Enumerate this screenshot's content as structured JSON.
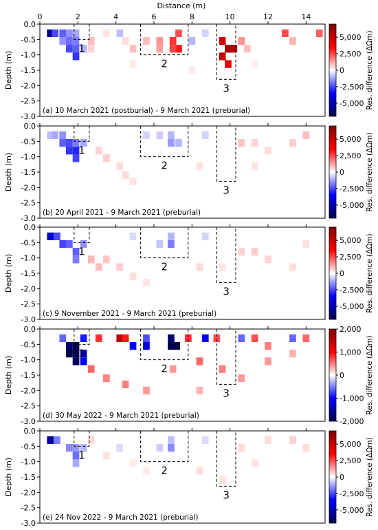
{
  "figure": {
    "xlabel": "Distance (m)",
    "ylabel": "Depth (m)",
    "colorbar_label": "Res. difference (ΔΩm)",
    "x_ticks": [
      "0",
      "2",
      "4",
      "6",
      "8",
      "10",
      "12",
      "14"
    ],
    "y_ticks": [
      "0.0",
      "-0.5",
      "-1.0",
      "-1.5",
      "-2.0",
      "-2.5",
      "-3.0"
    ],
    "box_labels": [
      "1",
      "2",
      "3"
    ]
  },
  "chart_data": [
    {
      "type": "heatmap",
      "id": "a",
      "caption": "(a) 10 March 2021 (postburial) - 9 March 2021 (preburial)",
      "xlim": [
        0,
        15
      ],
      "ylim": [
        -3.0,
        0.0
      ],
      "colorbar": {
        "min": -7000,
        "max": 7000,
        "ticks": [
          5000,
          2500,
          0,
          -2500,
          -5000
        ],
        "tick_labels": [
          "5,000",
          "2,500",
          "0",
          "-2,500",
          "-5,000"
        ]
      },
      "cells": [
        [
          0.55,
          -0.3,
          -5500
        ],
        [
          0.8,
          -0.3,
          -2500
        ],
        [
          1.2,
          -0.3,
          -2200
        ],
        [
          1.55,
          -0.3,
          -1500
        ],
        [
          1.9,
          -0.3,
          -1200
        ],
        [
          1.2,
          -0.55,
          -1500
        ],
        [
          1.55,
          -0.55,
          -2000
        ],
        [
          1.9,
          -0.55,
          -1800
        ],
        [
          1.55,
          -0.8,
          -2500
        ],
        [
          1.9,
          -0.8,
          -2200
        ],
        [
          1.9,
          -1.05,
          -2800
        ],
        [
          2.3,
          -0.8,
          -1000
        ],
        [
          2.7,
          -0.55,
          900
        ],
        [
          2.7,
          -0.8,
          600
        ],
        [
          3.5,
          -0.3,
          400
        ],
        [
          4.2,
          -0.3,
          -900
        ],
        [
          4.5,
          -0.55,
          500
        ],
        [
          4.9,
          -0.8,
          900
        ],
        [
          5.6,
          -0.55,
          900
        ],
        [
          6.3,
          -0.55,
          1500
        ],
        [
          7.0,
          -0.55,
          2800
        ],
        [
          7.3,
          -0.3,
          2400
        ],
        [
          7.3,
          -0.8,
          3200
        ],
        [
          7.0,
          -0.8,
          2600
        ],
        [
          6.3,
          -0.8,
          1300
        ],
        [
          8.0,
          -0.55,
          -1000
        ],
        [
          8.7,
          -0.3,
          -600
        ],
        [
          9.6,
          -0.55,
          4800
        ],
        [
          9.9,
          -0.8,
          6000
        ],
        [
          10.2,
          -0.8,
          5600
        ],
        [
          9.6,
          -1.05,
          5000
        ],
        [
          9.9,
          -1.3,
          4200
        ],
        [
          10.6,
          -0.55,
          1500
        ],
        [
          10.9,
          -0.8,
          900
        ],
        [
          12.9,
          -0.3,
          2500
        ],
        [
          13.3,
          -0.55,
          1000
        ],
        [
          14.7,
          -0.3,
          2200
        ],
        [
          4.9,
          -1.3,
          300
        ],
        [
          8.0,
          -1.5,
          300
        ],
        [
          11.3,
          -1.3,
          200
        ]
      ],
      "dashed_boxes": [
        {
          "label": "1",
          "x": [
            1.8,
            2.6
          ],
          "depth": [
            0.0,
            -0.5
          ]
        },
        {
          "label": "2",
          "x": [
            5.3,
            7.8
          ],
          "depth": [
            0.0,
            -1.0
          ]
        },
        {
          "label": "3",
          "x": [
            9.3,
            10.3
          ],
          "depth": [
            0.0,
            -1.8
          ]
        }
      ]
    },
    {
      "type": "heatmap",
      "id": "b",
      "caption": "(b) 20 April 2021 - 9 March 2021 (preburial)",
      "xlim": [
        0,
        15
      ],
      "ylim": [
        -3.0,
        0.0
      ],
      "colorbar": {
        "min": -7000,
        "max": 7000,
        "ticks": [
          5000,
          2500,
          0,
          -2500,
          -5000
        ],
        "tick_labels": [
          "5,000",
          "2,500",
          "0",
          "-2,500",
          "-5,000"
        ]
      },
      "cells": [
        [
          0.55,
          -0.3,
          -900
        ],
        [
          0.8,
          -0.3,
          -1200
        ],
        [
          1.2,
          -0.3,
          -1500
        ],
        [
          1.2,
          -0.55,
          -2200
        ],
        [
          1.55,
          -0.55,
          -2500
        ],
        [
          1.55,
          -0.8,
          -2800
        ],
        [
          1.9,
          -0.8,
          -3000
        ],
        [
          1.9,
          -1.05,
          -2600
        ],
        [
          1.9,
          -0.55,
          -1800
        ],
        [
          2.3,
          -0.55,
          -1200
        ],
        [
          3.1,
          -0.8,
          600
        ],
        [
          3.5,
          -1.05,
          700
        ],
        [
          4.2,
          -1.3,
          500
        ],
        [
          4.5,
          -1.6,
          500
        ],
        [
          4.9,
          -1.8,
          400
        ],
        [
          6.3,
          -0.3,
          -700
        ],
        [
          6.9,
          -0.3,
          -1000
        ],
        [
          6.9,
          -0.55,
          -1400
        ],
        [
          7.3,
          -0.55,
          -1000
        ],
        [
          5.6,
          -0.3,
          -600
        ],
        [
          8.7,
          -0.3,
          -600
        ],
        [
          10.6,
          -0.55,
          800
        ],
        [
          11.3,
          -0.55,
          600
        ],
        [
          12.0,
          -0.8,
          500
        ],
        [
          13.3,
          -0.55,
          700
        ],
        [
          14.0,
          -0.3,
          900
        ],
        [
          8.4,
          -1.3,
          400
        ],
        [
          11.3,
          -1.3,
          400
        ]
      ],
      "dashed_boxes": [
        {
          "label": "1",
          "x": [
            1.8,
            2.6
          ],
          "depth": [
            0.0,
            -0.5
          ]
        },
        {
          "label": "2",
          "x": [
            5.3,
            7.8
          ],
          "depth": [
            0.0,
            -1.0
          ]
        },
        {
          "label": "3",
          "x": [
            9.3,
            10.3
          ],
          "depth": [
            0.0,
            -1.8
          ]
        }
      ]
    },
    {
      "type": "heatmap",
      "id": "c",
      "caption": "(c) 9 November 2021 - 9 March 2021 (preburial)",
      "xlim": [
        0,
        15
      ],
      "ylim": [
        -3.0,
        0.0
      ],
      "colorbar": {
        "min": -7000,
        "max": 7000,
        "ticks": [
          5000,
          2500,
          0,
          -2500,
          -5000
        ],
        "tick_labels": [
          "5,000",
          "2,500",
          "0",
          "-2,500",
          "-5,000"
        ]
      },
      "cells": [
        [
          0.55,
          -0.3,
          -4500
        ],
        [
          0.9,
          -0.3,
          -2500
        ],
        [
          1.2,
          -0.55,
          -2600
        ],
        [
          1.55,
          -0.55,
          -2200
        ],
        [
          1.9,
          -0.8,
          -2200
        ],
        [
          1.9,
          -1.05,
          -1800
        ],
        [
          2.3,
          -0.55,
          -1500
        ],
        [
          2.7,
          -1.05,
          1000
        ],
        [
          3.1,
          -1.3,
          900
        ],
        [
          3.5,
          -1.05,
          800
        ],
        [
          4.2,
          -1.3,
          700
        ],
        [
          4.9,
          -1.6,
          500
        ],
        [
          5.6,
          -1.8,
          400
        ],
        [
          4.9,
          -0.3,
          -500
        ],
        [
          6.9,
          -0.55,
          -1800
        ],
        [
          6.9,
          -0.3,
          -1000
        ],
        [
          6.3,
          -0.55,
          -800
        ],
        [
          8.7,
          -0.3,
          -600
        ],
        [
          10.6,
          -0.8,
          600
        ],
        [
          11.3,
          -0.8,
          700
        ],
        [
          12.0,
          -1.05,
          600
        ],
        [
          13.3,
          -1.3,
          500
        ],
        [
          14.0,
          -0.55,
          400
        ],
        [
          8.4,
          -1.3,
          500
        ],
        [
          9.6,
          -1.3,
          400
        ]
      ],
      "dashed_boxes": [
        {
          "label": "1",
          "x": [
            1.8,
            2.6
          ],
          "depth": [
            0.0,
            -0.5
          ]
        },
        {
          "label": "2",
          "x": [
            5.3,
            7.8
          ],
          "depth": [
            0.0,
            -1.0
          ]
        },
        {
          "label": "3",
          "x": [
            9.3,
            10.3
          ],
          "depth": [
            0.0,
            -1.8
          ]
        }
      ]
    },
    {
      "type": "heatmap",
      "id": "d",
      "caption": "(d) 30 May 2022 - 9 March 2021 (preburial)",
      "xlim": [
        0,
        15
      ],
      "ylim": [
        -3.0,
        0.0
      ],
      "colorbar": {
        "min": -2000,
        "max": 2000,
        "ticks": [
          2000,
          1000,
          0,
          -1000,
          -2000
        ],
        "tick_labels": [
          "2,000",
          "1,000",
          "0",
          "-1,000",
          "-2,000"
        ]
      },
      "cells": [
        [
          1.55,
          -0.55,
          -1800
        ],
        [
          1.9,
          -0.55,
          -2000
        ],
        [
          1.55,
          -0.8,
          -2000
        ],
        [
          1.9,
          -0.8,
          -2000
        ],
        [
          1.9,
          -1.05,
          -1900
        ],
        [
          2.3,
          -0.8,
          -1400
        ],
        [
          2.3,
          -1.05,
          -1000
        ],
        [
          1.2,
          -0.3,
          -600
        ],
        [
          2.3,
          -0.3,
          -900
        ],
        [
          3.1,
          -0.3,
          800
        ],
        [
          4.2,
          -0.3,
          1500
        ],
        [
          4.5,
          -0.3,
          900
        ],
        [
          4.9,
          -0.55,
          -1000
        ],
        [
          5.6,
          -0.55,
          -1200
        ],
        [
          5.6,
          -0.3,
          -700
        ],
        [
          6.9,
          -0.55,
          -2000
        ],
        [
          7.2,
          -0.55,
          -2000
        ],
        [
          6.9,
          -0.3,
          -1800
        ],
        [
          7.8,
          -0.3,
          800
        ],
        [
          8.7,
          -0.3,
          -1100
        ],
        [
          9.3,
          -0.3,
          700
        ],
        [
          10.6,
          -0.3,
          -600
        ],
        [
          11.3,
          -0.3,
          700
        ],
        [
          12.0,
          -0.55,
          500
        ],
        [
          13.3,
          -0.3,
          -600
        ],
        [
          14.0,
          -0.3,
          600
        ],
        [
          2.7,
          -1.3,
          600
        ],
        [
          3.5,
          -1.6,
          500
        ],
        [
          4.5,
          -1.8,
          500
        ],
        [
          5.6,
          -2.0,
          400
        ],
        [
          7.0,
          -1.3,
          400
        ],
        [
          8.4,
          -1.05,
          600
        ],
        [
          9.6,
          -1.3,
          500
        ],
        [
          10.6,
          -1.6,
          400
        ],
        [
          12.0,
          -1.05,
          400
        ],
        [
          13.3,
          -0.8,
          300
        ],
        [
          8.4,
          -2.0,
          300
        ]
      ],
      "dashed_boxes": [
        {
          "label": "1",
          "x": [
            1.8,
            2.6
          ],
          "depth": [
            0.0,
            -0.5
          ]
        },
        {
          "label": "2",
          "x": [
            5.3,
            7.8
          ],
          "depth": [
            0.0,
            -1.0
          ]
        },
        {
          "label": "3",
          "x": [
            9.3,
            10.3
          ],
          "depth": [
            0.0,
            -1.8
          ]
        }
      ]
    },
    {
      "type": "heatmap",
      "id": "e",
      "caption": "(e) 24 Nov 2022 - 9 March 2021 (preburial)",
      "xlim": [
        0,
        15
      ],
      "ylim": [
        -3.0,
        0.0
      ],
      "colorbar": {
        "min": -7000,
        "max": 7000,
        "ticks": [
          5000,
          2500,
          0,
          -2500,
          -5000
        ],
        "tick_labels": [
          "5,000",
          "2,500",
          "0",
          "-2,500",
          "-5,000"
        ]
      },
      "cells": [
        [
          0.55,
          -0.3,
          -5500
        ],
        [
          0.9,
          -0.3,
          -1800
        ],
        [
          1.55,
          -0.55,
          -1600
        ],
        [
          1.9,
          -0.55,
          -1400
        ],
        [
          1.9,
          -0.8,
          -2000
        ],
        [
          1.9,
          -1.05,
          -1200
        ],
        [
          2.3,
          -0.55,
          -1000
        ],
        [
          2.7,
          -0.3,
          500
        ],
        [
          3.5,
          -0.8,
          400
        ],
        [
          4.2,
          -0.55,
          -500
        ],
        [
          6.9,
          -0.55,
          -1600
        ],
        [
          6.9,
          -0.3,
          -900
        ],
        [
          6.3,
          -0.55,
          -700
        ],
        [
          8.7,
          -0.3,
          -500
        ],
        [
          10.6,
          -0.55,
          500
        ],
        [
          12.0,
          -0.3,
          500
        ],
        [
          13.3,
          -0.3,
          600
        ],
        [
          14.0,
          -0.55,
          500
        ],
        [
          8.4,
          -1.3,
          500
        ],
        [
          9.6,
          -1.6,
          400
        ],
        [
          11.3,
          -1.05,
          400
        ],
        [
          5.6,
          -1.3,
          300
        ],
        [
          4.9,
          -1.05,
          300
        ]
      ],
      "dashed_boxes": [
        {
          "label": "1",
          "x": [
            1.8,
            2.6
          ],
          "depth": [
            0.0,
            -0.5
          ]
        },
        {
          "label": "2",
          "x": [
            5.3,
            7.8
          ],
          "depth": [
            0.0,
            -1.0
          ]
        },
        {
          "label": "3",
          "x": [
            9.3,
            10.3
          ],
          "depth": [
            0.0,
            -1.8
          ]
        }
      ]
    }
  ]
}
